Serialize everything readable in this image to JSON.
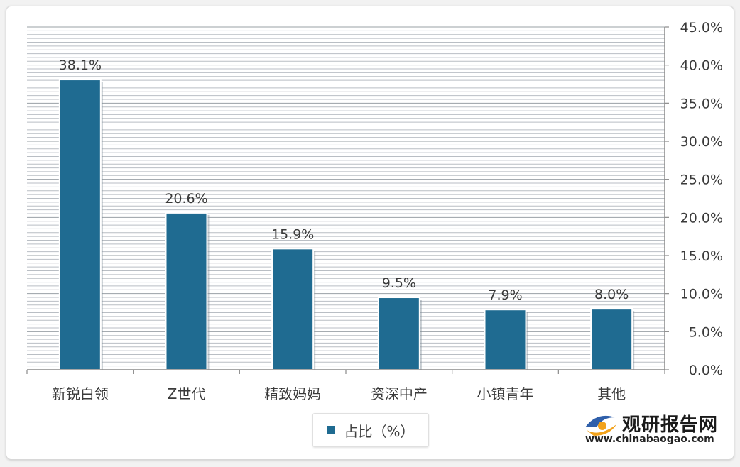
{
  "chart_data": {
    "type": "bar",
    "categories": [
      "新锐白领",
      "Z世代",
      "精致妈妈",
      "资深中产",
      "小镇青年",
      "其他"
    ],
    "series": [
      {
        "name": "占比（%）",
        "values": [
          38.1,
          20.6,
          15.9,
          9.5,
          7.9,
          8.0
        ]
      }
    ],
    "data_labels": [
      "38.1%",
      "20.6%",
      "15.9%",
      "9.5%",
      "7.9%",
      "8.0%"
    ],
    "y_ticks": [
      "0.0%",
      "5.0%",
      "10.0%",
      "15.0%",
      "20.0%",
      "25.0%",
      "30.0%",
      "35.0%",
      "40.0%",
      "45.0%"
    ],
    "ylim": [
      0,
      45
    ],
    "y_axis_position": "right",
    "grid": true,
    "legend_position": "bottom",
    "bar_color": "#1f6b91"
  },
  "legend": {
    "label": "占比（%）"
  },
  "logo": {
    "name": "观研报告网",
    "url": "www.chinabaogao.com"
  }
}
